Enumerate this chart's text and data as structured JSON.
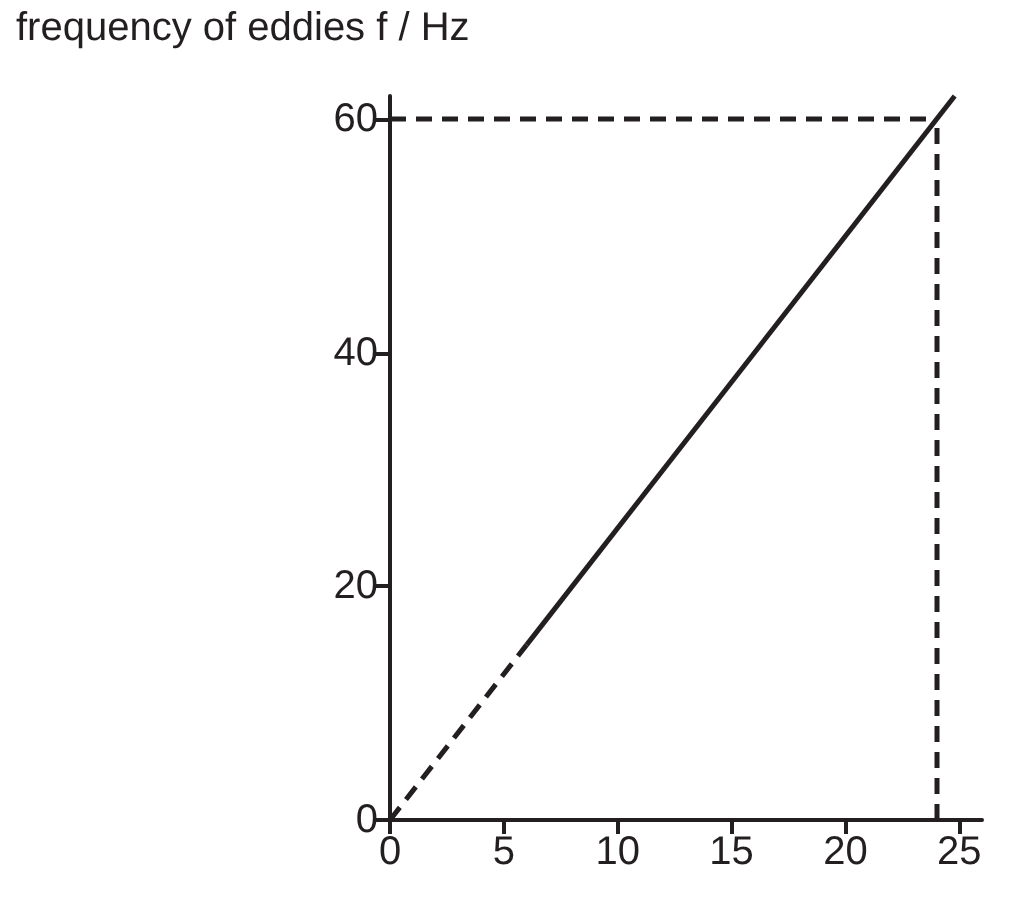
{
  "chart_data": {
    "type": "line",
    "ylabel": "frequency of eddies f / Hz",
    "xlim": [
      0,
      26
    ],
    "xticks": [
      0,
      5,
      10,
      15,
      20,
      25
    ],
    "ylim": [
      0,
      62
    ],
    "yticks": [
      0,
      20,
      40,
      60
    ],
    "grid": false,
    "marker": "none",
    "series": [
      {
        "x": [
          0,
          6
        ],
        "values": [
          0,
          15
        ],
        "color": "#231f20",
        "line_style": "dashed"
      },
      {
        "x": [
          6,
          24.8
        ],
        "values": [
          15,
          62
        ],
        "color": "#231f20",
        "line_style": "solid"
      }
    ],
    "ref_lines": [
      {
        "axis": "y",
        "value": 60,
        "color": "#231f20",
        "line_style": "dashed"
      },
      {
        "axis": "x",
        "value": 24,
        "color": "#231f20",
        "line_style": "dashed"
      }
    ]
  }
}
